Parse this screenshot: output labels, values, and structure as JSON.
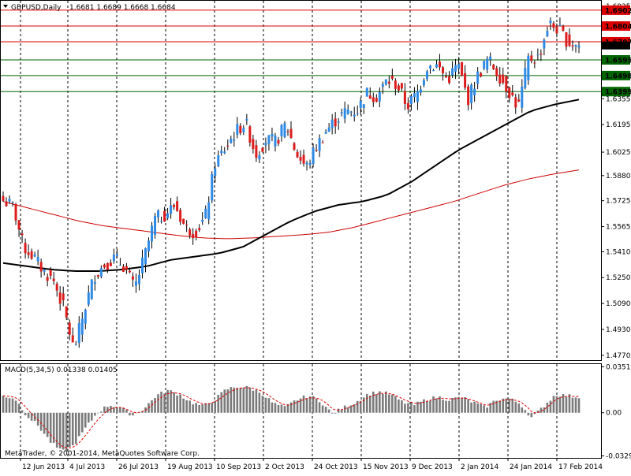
{
  "header": {
    "symbol": "GBPUSD,Daily",
    "ohlc": "1.6681 1.6689 1.6668 1.6684"
  },
  "macd": {
    "label": "MACD(5,34,5) 0.01338 0.01405",
    "ticks": [
      "0.03517",
      "0.00",
      "-0.03297"
    ],
    "range": [
      -0.03297,
      0.03517
    ]
  },
  "copyright": "MetaTrader, © 2001-2014, MetaQuotes Software Corp.",
  "chart_data": {
    "type": "candlestick",
    "symbol": "GBPUSD",
    "timeframe": "Daily",
    "ylim": [
      1.4777,
      1.6902
    ],
    "y_ticks": [
      "1.6925",
      "1.6804",
      "1.6707",
      "1.6595",
      "1.6498",
      "1.6399",
      "1.6355",
      "1.6195",
      "1.6025",
      "1.5880",
      "1.5725",
      "1.5565",
      "1.5410",
      "1.5250",
      "1.5090",
      "1.4930",
      "1.4770"
    ],
    "x_ticks": [
      "12 Jun 2013",
      "4 Jul 2013",
      "26 Jul 2013",
      "19 Aug 2013",
      "10 Sep 2013",
      "2 Oct 2013",
      "24 Oct 2013",
      "15 Nov 2013",
      "9 Dec 2013",
      "2 Jan 2014",
      "24 Jan 2014",
      "17 Feb 2014"
    ],
    "current_price": "1.6684",
    "levels": [
      {
        "value": 1.6902,
        "label": "1.6902",
        "color": "#dd0000"
      },
      {
        "value": 1.6804,
        "label": "1.6804",
        "color": "#dd0000"
      },
      {
        "value": 1.6707,
        "label": "1.6707",
        "color": "#dd0000"
      },
      {
        "value": 1.6595,
        "label": "1.6595",
        "color": "#006400"
      },
      {
        "value": 1.6498,
        "label": "1.6498",
        "color": "#006400"
      },
      {
        "value": 1.6399,
        "label": "1.6399",
        "color": "#006400"
      }
    ],
    "close_anchors": [
      1.5725,
      1.569,
      1.544,
      1.538,
      1.529,
      1.523,
      1.506,
      1.48,
      1.504,
      1.526,
      1.533,
      1.537,
      1.532,
      1.518,
      1.538,
      1.561,
      1.564,
      1.57,
      1.556,
      1.553,
      1.562,
      1.596,
      1.605,
      1.615,
      1.621,
      1.601,
      1.61,
      1.609,
      1.62,
      1.602,
      1.593,
      1.606,
      1.616,
      1.623,
      1.628,
      1.628,
      1.639,
      1.637,
      1.647,
      1.644,
      1.631,
      1.639,
      1.656,
      1.656,
      1.647,
      1.657,
      1.635,
      1.65,
      1.66,
      1.651,
      1.641,
      1.63,
      1.66,
      1.661,
      1.682,
      1.678,
      1.67,
      1.6684
    ],
    "ma_fast": [
      1.572,
      1.568,
      1.564,
      1.56,
      1.557,
      1.555,
      1.553,
      1.551,
      1.5495,
      1.549,
      1.5495,
      1.5505,
      1.5515,
      1.553,
      1.556,
      1.56,
      1.564,
      1.568,
      1.572,
      1.577,
      1.582,
      1.586,
      1.589,
      1.5915
    ],
    "ma_slow": [
      1.534,
      1.532,
      1.53,
      1.529,
      1.529,
      1.53,
      1.532,
      1.536,
      1.538,
      1.54,
      1.544,
      1.552,
      1.56,
      1.566,
      1.57,
      1.572,
      1.576,
      1.584,
      1.594,
      1.604,
      1.612,
      1.62,
      1.628,
      1.632,
      1.635
    ],
    "macd_anchors": [
      0.013,
      0.011,
      -0.002,
      -0.01,
      -0.022,
      -0.03,
      -0.025,
      -0.012,
      0.0,
      0.006,
      0.004,
      -0.002,
      0.003,
      0.013,
      0.017,
      0.014,
      0.008,
      0.005,
      0.01,
      0.018,
      0.02,
      0.019,
      0.015,
      0.007,
      0.004,
      0.01,
      0.013,
      0.009,
      -0.001,
      0.004,
      0.008,
      0.014,
      0.016,
      0.014,
      0.008,
      0.006,
      0.01,
      0.012,
      0.01,
      0.012,
      0.008,
      0.004,
      0.01,
      0.011,
      0.007,
      -0.004,
      0.005,
      0.014,
      0.013,
      0.012
    ]
  }
}
